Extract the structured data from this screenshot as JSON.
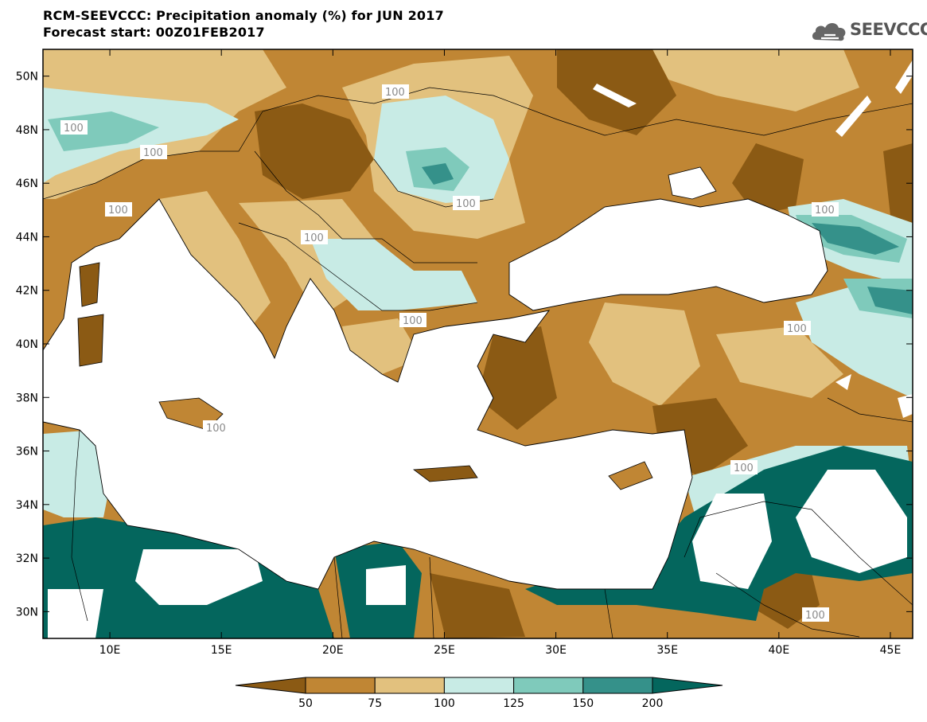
{
  "title": {
    "line1": "RCM-SEEVCCC: Precipitation anomaly (%) for JUN 2017",
    "line2": "Forecast start: 00Z01FEB2017"
  },
  "logo": {
    "text": "SEEVCCC",
    "icon": "cloud-icon"
  },
  "map": {
    "lon_range": [
      7,
      46
    ],
    "lat_range": [
      29,
      51
    ],
    "lat_ticks": [
      "50N",
      "48N",
      "46N",
      "44N",
      "42N",
      "40N",
      "38N",
      "36N",
      "34N",
      "32N",
      "30N"
    ],
    "lon_ticks": [
      "10E",
      "15E",
      "20E",
      "25E",
      "30E",
      "35E",
      "40E",
      "45E"
    ],
    "contour_labels": [
      "100",
      "100",
      "100",
      "100",
      "100",
      "100",
      "100",
      "100",
      "100",
      "100",
      "100",
      "100"
    ]
  },
  "colorbar": {
    "labels": [
      "50",
      "75",
      "100",
      "125",
      "150",
      "200"
    ],
    "colors": [
      "#8b5a14",
      "#c08634",
      "#e2c17e",
      "#c8ebe5",
      "#7fcabb",
      "#35918a",
      "#04665d"
    ]
  },
  "colors": {
    "dry_dark": "#8b5a14",
    "dry_mid": "#c08634",
    "dry_light": "#e2c17e",
    "wet_light": "#c8ebe5",
    "wet_mid": "#7fcabb",
    "wet_dark": "#35918a",
    "wet_darkest": "#04665d",
    "sea": "#ffffff"
  }
}
